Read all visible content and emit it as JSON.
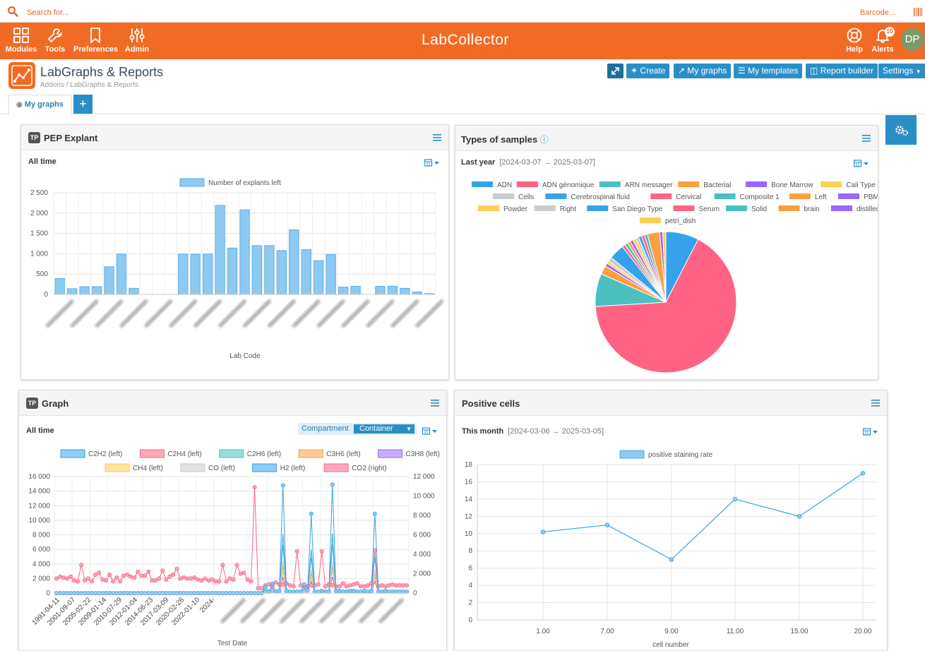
{
  "search": {
    "placeholder": "Search for...",
    "barcode_label": "Barcode..."
  },
  "nav": {
    "items": [
      {
        "label": "Modules",
        "icon": "grid-icon"
      },
      {
        "label": "Tools",
        "icon": "wrench-icon"
      },
      {
        "label": "Preferences",
        "icon": "bookmark-icon"
      },
      {
        "label": "Admin",
        "icon": "sliders-icon"
      }
    ],
    "logo": "LabCollector",
    "help_label": "Help",
    "alerts_label": "Alerts",
    "alerts_count": "10",
    "avatar_initials": "DP"
  },
  "page": {
    "title": "LabGraphs & Reports",
    "breadcrumb": "Addons / LabGraphs & Reports"
  },
  "toolbar": {
    "create": "Create",
    "my_graphs": "My graphs",
    "my_templates": "My templates",
    "report_builder": "Report builder",
    "settings": "Settings"
  },
  "tabs": {
    "active": "My graphs",
    "add": "+"
  },
  "colors": {
    "brand_orange": "#f26b25",
    "accent_blue": "#2b8fc7"
  },
  "panels": {
    "pep": {
      "badge": "TP",
      "title": "PEP Explant",
      "period": "All time"
    },
    "samples": {
      "title": "Types of samples",
      "period": "Last year",
      "range": "[2024-03-07 → 2025-03-07]"
    },
    "graph": {
      "badge": "TP",
      "title": "Graph",
      "period": "All time",
      "compartment_label": "Compartment",
      "compartment_value": "Container"
    },
    "positive": {
      "title": "Positive cells",
      "period": "This month",
      "range": "[2024-03-06 → 2025-03-05]"
    }
  },
  "chart_data": [
    {
      "type": "bar",
      "legend": [
        "Number of explants left"
      ],
      "xlabel": "Lab Code",
      "ylim": [
        0,
        2500
      ],
      "yticks": [
        "0",
        "500",
        "1 000",
        "1 500",
        "2 000",
        "2 500"
      ],
      "values": [
        390,
        140,
        190,
        190,
        680,
        990,
        150,
        0,
        0,
        0,
        990,
        990,
        990,
        2190,
        1140,
        2080,
        1200,
        1200,
        1080,
        1590,
        1100,
        830,
        980,
        180,
        200,
        0,
        200,
        200,
        150,
        60,
        20
      ],
      "color": "#8ec9f2"
    },
    {
      "type": "pie",
      "legend": [
        "ADN",
        "ADN génomique",
        "ARN messager",
        "Bacterial",
        "Bone Marrow",
        "Cali Type",
        "Cells",
        "Cerebrospinal fluid",
        "Cervical",
        "Composite 1",
        "Left",
        "PBMC",
        "Powder",
        "Right",
        "San Diego Type",
        "Serum",
        "Solid",
        "brain",
        "distilled",
        "petri_dish"
      ],
      "colors": [
        "#36a2eb",
        "#ff6384",
        "#4bc0c0",
        "#ff9f40",
        "#9966ff",
        "#ffcd56",
        "#c9cbcf",
        "#36a2eb",
        "#ff6384",
        "#4bc0c0",
        "#ff9f40",
        "#9966ff",
        "#ffcd56",
        "#c9cbcf",
        "#36a2eb",
        "#ff6384",
        "#4bc0c0",
        "#ff9f40",
        "#9966ff",
        "#ffcd56"
      ],
      "values": [
        7.5,
        66,
        7.5,
        2,
        0.7,
        0.6,
        1,
        3.5,
        0.7,
        0.7,
        0.7,
        0.7,
        0.7,
        0.7,
        0.7,
        0.7,
        0.7,
        2.8,
        0.7,
        0.7
      ]
    },
    {
      "type": "line",
      "legend": [
        {
          "name": "C2H2 (left)",
          "color": "#36a2eb"
        },
        {
          "name": "C2H4 (left)",
          "color": "#ff6384"
        },
        {
          "name": "C2H6 (left)",
          "color": "#4bc0c0"
        },
        {
          "name": "C3H6 (left)",
          "color": "#ff9f40"
        },
        {
          "name": "C3H8 (left)",
          "color": "#9966ff"
        },
        {
          "name": "CH4 (left)",
          "color": "#ffcd56"
        },
        {
          "name": "CO (left)",
          "color": "#c9cbcf"
        },
        {
          "name": "H2 (left)",
          "color": "#36a2eb"
        },
        {
          "name": "CO2 (right)",
          "color": "#ff6384"
        }
      ],
      "xlabel": "Test Date",
      "x_ticks": [
        "1991-04-11",
        "2001-09-07",
        "2005-02-22",
        "2009-01-14",
        "2010-07-29",
        "2012-01-04",
        "2014-06-23",
        "2017-03-09",
        "2020-02-26",
        "2022-01-10",
        "2024-"
      ],
      "ylim_left": [
        0,
        16000
      ],
      "yticks_left": [
        "0",
        "2 000",
        "4 000",
        "6 000",
        "8 000",
        "10 000",
        "12 000",
        "14 000",
        "16 000"
      ],
      "ylim_right": [
        0,
        12000
      ],
      "yticks_right": [
        "0",
        "2 000",
        "4 000",
        "6 000",
        "8 000",
        "10 000",
        "12 000"
      ],
      "co2_right": [
        1500,
        1700,
        1600,
        1500,
        1700,
        1300,
        1200,
        2900,
        1300,
        1500,
        1200,
        1900,
        2100,
        1400,
        1300,
        1900,
        1200,
        1600,
        1200,
        1800,
        1900,
        1700,
        1600,
        2200,
        1800,
        1800,
        2200,
        1300,
        1300,
        1500,
        2300,
        1400,
        1700,
        1900,
        2500,
        1500,
        1600,
        1500,
        1500,
        1600,
        1400,
        1300,
        1500,
        1300,
        1400,
        1200,
        1200,
        2900,
        1200,
        1500,
        1400,
        2900,
        2000,
        2100,
        1400,
        1200,
        10900,
        500,
        500,
        800,
        900,
        700,
        1100,
        900,
        900,
        1000,
        800,
        700,
        4300,
        800,
        700,
        700,
        800,
        800,
        900,
        4300,
        700,
        900,
        800,
        700,
        700,
        1000,
        700,
        800,
        900,
        1000,
        700,
        700,
        800,
        1000,
        4400,
        700,
        800,
        700,
        800,
        900,
        800,
        800,
        800,
        800
      ],
      "h2_left": [
        0,
        0,
        0,
        0,
        0,
        0,
        0,
        0,
        0,
        0,
        0,
        0,
        0,
        0,
        0,
        0,
        0,
        0,
        0,
        0,
        0,
        0,
        0,
        0,
        0,
        0,
        0,
        0,
        0,
        0,
        0,
        0,
        0,
        0,
        0,
        0,
        0,
        0,
        0,
        0,
        0,
        0,
        0,
        0,
        0,
        0,
        0,
        0,
        0,
        0,
        0,
        0,
        0,
        0,
        0,
        0,
        0,
        0,
        0,
        800,
        200,
        1300,
        200,
        300,
        14800,
        300,
        200,
        200,
        200,
        200,
        1200,
        400,
        10900,
        200,
        200,
        300,
        200,
        200,
        14900,
        300,
        300,
        200,
        200,
        300,
        300,
        200,
        200,
        300,
        200,
        300,
        10900,
        200,
        200,
        300,
        200,
        200,
        200,
        200,
        200,
        200
      ]
    },
    {
      "type": "line",
      "legend": [
        "positive staining rate"
      ],
      "x": [
        "1.00",
        "7.00",
        "9.00",
        "11.00",
        "15.00",
        "20.00"
      ],
      "values": [
        10.2,
        11,
        7,
        14,
        12,
        17
      ],
      "xlabel": "cell number",
      "ylim": [
        0,
        18
      ],
      "yticks": [
        "0",
        "2",
        "4",
        "6",
        "8",
        "10",
        "12",
        "14",
        "16",
        "18"
      ]
    }
  ]
}
